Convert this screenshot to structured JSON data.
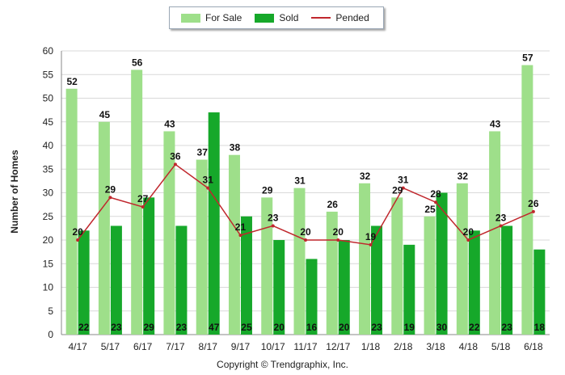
{
  "chart_data": {
    "type": "bar",
    "title": "",
    "xlabel": "",
    "ylabel": "Number of Homes",
    "ylim": [
      0,
      60
    ],
    "yticks": [
      0,
      5,
      10,
      15,
      20,
      25,
      30,
      35,
      40,
      45,
      50,
      55,
      60
    ],
    "grid": true,
    "legend_position": "top-center",
    "categories": [
      "4/17",
      "5/17",
      "6/17",
      "7/17",
      "8/17",
      "9/17",
      "10/17",
      "11/17",
      "12/17",
      "1/18",
      "2/18",
      "3/18",
      "4/18",
      "5/18",
      "6/18"
    ],
    "series": [
      {
        "name": "For Sale",
        "kind": "bar",
        "color": "#9edf8a",
        "values": [
          52,
          45,
          56,
          43,
          37,
          38,
          29,
          31,
          26,
          32,
          29,
          25,
          32,
          43,
          57
        ]
      },
      {
        "name": "Sold",
        "kind": "bar",
        "color": "#16a82a",
        "values": [
          22,
          23,
          29,
          23,
          47,
          25,
          20,
          16,
          20,
          23,
          19,
          30,
          22,
          23,
          18
        ]
      },
      {
        "name": "Pended",
        "kind": "line",
        "color": "#c0272d",
        "values": [
          20,
          29,
          27,
          36,
          31,
          21,
          23,
          20,
          20,
          19,
          31,
          28,
          20,
          23,
          26
        ]
      }
    ]
  },
  "legend": {
    "for_sale": "For Sale",
    "sold": "Sold",
    "pended": "Pended"
  },
  "copyright": "Copyright © Trendgraphix, Inc."
}
